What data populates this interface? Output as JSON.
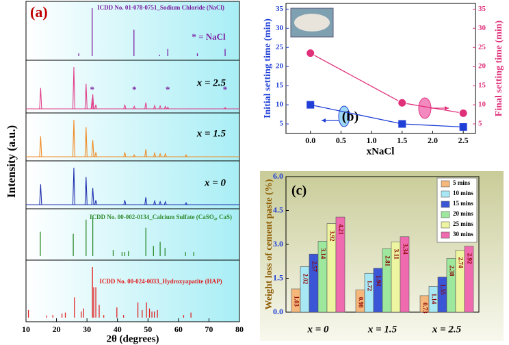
{
  "chart_data": [
    {
      "type": "xrd-stack",
      "title": "(a)",
      "x_label": "2θ (degrees)",
      "y_label": "Intensity (a.u.)",
      "xlim": [
        10,
        80
      ],
      "xticks": [
        10,
        20,
        30,
        40,
        50,
        60,
        70,
        80
      ],
      "legend_note": "* = NaCl",
      "panels": [
        {
          "label": "ICDD No. 01-078-0751_Sodium Chloride (NaCl)",
          "style": "sticks",
          "color": "#7b1fa2",
          "peaks_x": [
            27.3,
            31.7,
            45.4,
            53.8,
            56.5,
            66.2,
            75.3
          ],
          "peaks": [
            6,
            100,
            55,
            3,
            15,
            6,
            15
          ]
        },
        {
          "label": "x = 2.5",
          "style": "pattern",
          "color": "#e0408a",
          "peaks_x": [
            14.8,
            25.7,
            29.7,
            31.7,
            31.9,
            32.9,
            42.4,
            45.5,
            49.3,
            52.2,
            54.0,
            55.7,
            56.5,
            75.3
          ],
          "peaks": [
            50,
            100,
            60,
            25,
            35,
            10,
            10,
            6,
            15,
            8,
            7,
            6,
            4,
            3
          ],
          "markers": {
            "text": "*",
            "x": [
              31.7,
              45.5,
              56.5,
              75.3
            ]
          }
        },
        {
          "label": "x = 1.5",
          "style": "pattern",
          "color": "#f08a24",
          "peaks_x": [
            14.8,
            25.7,
            29.7,
            31.9,
            32.9,
            42.4,
            45.5,
            49.3,
            52.2,
            54.0,
            55.7,
            62.5
          ],
          "peaks": [
            55,
            100,
            80,
            45,
            12,
            12,
            5,
            20,
            10,
            8,
            8,
            5
          ]
        },
        {
          "label": "x = 0",
          "style": "pattern",
          "color": "#2030b0",
          "peaks_x": [
            14.8,
            25.7,
            29.7,
            31.9,
            32.9,
            42.4,
            49.3,
            52.2,
            54.0,
            55.7,
            62.5
          ],
          "peaks": [
            55,
            100,
            75,
            45,
            12,
            12,
            20,
            10,
            8,
            8,
            5
          ]
        },
        {
          "label": "ICDD No. 00-002-0134_Calcium Sulfate (CaSO₄, CaS)",
          "style": "sticks",
          "color": "#2e8b2e",
          "peaks_x": [
            14.7,
            25.5,
            29.7,
            31.9,
            38.6,
            41.5,
            42.4,
            43.6,
            49.3,
            51.8,
            54.0,
            55.6,
            62.3,
            65.0
          ],
          "peaks": [
            60,
            55,
            90,
            100,
            15,
            10,
            10,
            12,
            70,
            25,
            35,
            20,
            10,
            10
          ]
        },
        {
          "label": "ICDD No. 00-024-0033_Hydroxyapatite (HAP)",
          "style": "sticks",
          "color": "#e02020",
          "peaks_x": [
            10.8,
            16.8,
            18.8,
            21.8,
            22.9,
            25.9,
            28.1,
            28.9,
            31.8,
            32.2,
            32.9,
            34.0,
            35.5,
            39.8,
            42.0,
            46.7,
            48.1,
            49.5,
            50.5,
            51.3,
            52.1,
            53.1,
            61.7,
            64.1
          ],
          "peaks": [
            15,
            4,
            5,
            8,
            10,
            40,
            12,
            18,
            100,
            60,
            60,
            25,
            5,
            20,
            5,
            30,
            15,
            30,
            18,
            12,
            12,
            15,
            5,
            10
          ]
        }
      ]
    },
    {
      "type": "dual-line",
      "title": "(b)",
      "x_label": "xNaCl",
      "y_label": "Initial setting time (min)",
      "y2_label": "Final setting time (min)",
      "x": [
        0,
        1.5,
        2.5
      ],
      "xlim": [
        -0.4,
        2.7
      ],
      "xticks": [
        {
          "value": 0,
          "label": "0.0"
        },
        0.5,
        {
          "value": 1,
          "label": "1.0"
        },
        1.5,
        {
          "value": 2,
          "label": "2.0"
        },
        2.5
      ],
      "ylim": [
        2.5,
        36.5
      ],
      "yticks": [
        5,
        10,
        15,
        20,
        25,
        30,
        35
      ],
      "y2lim": [
        2.5,
        36.5
      ],
      "y2ticks": [
        5,
        10,
        15,
        20,
        25,
        30,
        35
      ],
      "series": [
        {
          "color": "#1f3fd6",
          "marker": "square",
          "values": [
            10,
            5,
            4.2
          ]
        },
        {
          "color": "#e0307a",
          "marker": "circle",
          "axis": "y2",
          "values": [
            23.5,
            10.5,
            7.8
          ]
        }
      ]
    },
    {
      "type": "grouped-bar",
      "title": "(c)",
      "y_label": "Weight loss of cement paste (%)",
      "categories": [
        "x = 0",
        "x = 1.5",
        "x = 2.5"
      ],
      "ylim": [
        0,
        6
      ],
      "yticks": [
        {
          "value": 0,
          "label": "0.0"
        },
        1.5,
        {
          "value": 3,
          "label": "3.0"
        },
        4.5,
        {
          "value": 6,
          "label": "6.0"
        }
      ],
      "legend": "upper right",
      "series": [
        {
          "name": "5 mins",
          "color": "#f5b87a",
          "values": [
            1.03,
            0.98,
            0.73
          ]
        },
        {
          "name": "10 mins",
          "color": "#a8e8f5",
          "values": [
            2.02,
            1.72,
            1.14
          ]
        },
        {
          "name": "15 mins",
          "color": "#3a56d6",
          "values": [
            2.57,
            1.94,
            1.55
          ]
        },
        {
          "name": "20 mins",
          "color": "#9ee89e",
          "values": [
            3.14,
            2.81,
            2.38
          ]
        },
        {
          "name": "25 mins",
          "color": "#eef5a0",
          "values": [
            3.92,
            3.11,
            2.74
          ]
        },
        {
          "name": "30 mins",
          "color": "#f06ab0",
          "values": [
            4.21,
            3.34,
            2.92
          ]
        }
      ]
    }
  ]
}
